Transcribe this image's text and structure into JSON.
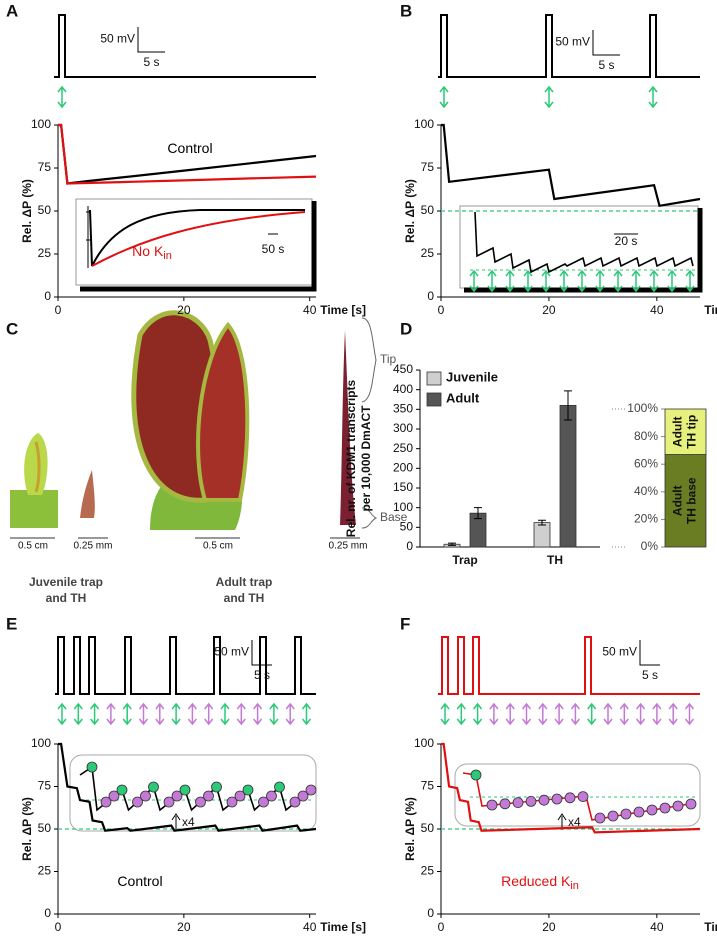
{
  "panel_labels": [
    "A",
    "B",
    "C",
    "D",
    "E",
    "F"
  ],
  "photos": {
    "scale_bars": [
      "0.5 cm",
      "0.25 mm",
      "0.5 cm",
      "0.25 mm"
    ],
    "tip": "Tip",
    "base": "Base",
    "captions": [
      [
        "Juvenile trap",
        "and TH"
      ],
      [
        "Adult trap",
        "and TH"
      ]
    ]
  },
  "chart_data": [
    {
      "type": "line",
      "ylabel": "Rel. ΔP (%)",
      "xlabel": "Time [s]",
      "xlim": [
        0,
        41
      ],
      "ylim": [
        0,
        100
      ],
      "xticks": [
        0,
        20,
        40
      ],
      "yticks": [
        0,
        25,
        50,
        75,
        100
      ],
      "scale_y": "50 mV",
      "scale_x": "5 s",
      "inset_scale": "50 s",
      "series": [
        {
          "name": "Control",
          "color": "#000000",
          "x": [
            0,
            0.5,
            1.5,
            5,
            10,
            20,
            30,
            41
          ],
          "values": [
            100,
            100,
            66,
            67.5,
            69.5,
            73.5,
            77.5,
            82
          ]
        },
        {
          "name": "No K",
          "name_sub": "in",
          "color": "#e01010",
          "x": [
            0,
            0.5,
            1.5,
            10,
            20,
            30,
            41
          ],
          "values": [
            100,
            100,
            66,
            66.8,
            67.8,
            68.9,
            70
          ]
        }
      ]
    },
    {
      "type": "line",
      "ylabel": "Rel. ΔP (%)",
      "xlabel": "Time [s]",
      "xlim": [
        0,
        48
      ],
      "ylim": [
        0,
        100
      ],
      "xticks": [
        0,
        20,
        40
      ],
      "yticks": [
        0,
        25,
        50,
        75,
        100
      ],
      "reference": 50,
      "scale_y": "50 mV",
      "scale_x": "5 s",
      "inset_scale": "20 s",
      "series": [
        {
          "color": "#000000",
          "x": [
            0,
            0.5,
            1.5,
            20,
            21,
            39.5,
            40.5,
            48
          ],
          "values": [
            100,
            100,
            67,
            74,
            57,
            65,
            53,
            57
          ]
        }
      ]
    },
    {
      "type": "bar",
      "ylabel": [
        "Rel. nr. of KDM1 transcripts",
        "per 10,000 DmACT"
      ],
      "categories": [
        "Trap",
        "TH"
      ],
      "ylim": [
        0,
        450
      ],
      "yticks": [
        0,
        50,
        100,
        150,
        200,
        250,
        300,
        350,
        400,
        450
      ],
      "series": [
        {
          "name": "Juvenile",
          "color": "#cfcfcf",
          "values": [
            7,
            62
          ],
          "errors": [
            3,
            6
          ]
        },
        {
          "name": "Adult",
          "color": "#555555",
          "values": [
            86,
            360
          ],
          "errors": [
            14,
            37
          ]
        }
      ]
    },
    {
      "type": "stacked",
      "ylim": [
        0,
        100
      ],
      "yticks": [
        {
          "value": 0,
          "label": "0%"
        },
        {
          "value": 20,
          "label": "20%"
        },
        {
          "value": 40,
          "label": "40%"
        },
        {
          "value": 60,
          "label": "60%"
        },
        {
          "value": 80,
          "label": "80%"
        },
        {
          "value": 100,
          "label": "100%"
        }
      ],
      "series": [
        {
          "name": [
            "Adult",
            "TH base"
          ],
          "color": "#6b7d22",
          "values": [
            67
          ]
        },
        {
          "name": [
            "Adult",
            "TH tip"
          ],
          "color": "#e6f07c",
          "values": [
            33
          ]
        }
      ]
    },
    {
      "type": "line",
      "ylabel": "Rel. ΔP (%)",
      "xlabel": "Time [s]",
      "xlim": [
        0,
        41
      ],
      "ylim": [
        0,
        100
      ],
      "xticks": [
        0,
        20,
        40
      ],
      "yticks": [
        0,
        25,
        50,
        75,
        100
      ],
      "reference": 50,
      "scale_y": "50 mV",
      "scale_x": "5 s",
      "inset_note": "x4",
      "series": [
        {
          "name": "Control",
          "color": "#000000",
          "x": [
            0,
            0.5,
            1.5,
            3,
            3.5,
            5,
            5.5,
            7,
            7.5,
            11,
            11.5,
            18,
            18.5,
            25,
            25.5,
            32,
            32.5,
            38,
            38.5,
            41
          ],
          "values": [
            100,
            100,
            75,
            74,
            67,
            66,
            55,
            54,
            49,
            50.5,
            49,
            52,
            49,
            52,
            49,
            52,
            49,
            52,
            49,
            50
          ]
        }
      ]
    },
    {
      "type": "line",
      "ylabel": "Rel. ΔP (%)",
      "xlabel": "Time [s]",
      "xlim": [
        0,
        48
      ],
      "ylim": [
        0,
        100
      ],
      "xticks": [
        0,
        20,
        40
      ],
      "yticks": [
        0,
        25,
        50,
        75,
        100
      ],
      "reference": 50,
      "scale_y": "50 mV",
      "scale_x": "5 s",
      "inset_note": "x4",
      "series": [
        {
          "name": "Reduced K",
          "name_sub": "in",
          "color": "#e01010",
          "x": [
            0,
            0.5,
            1.5,
            3,
            3.5,
            5,
            5.5,
            7,
            7.5,
            28,
            28.5,
            48
          ],
          "values": [
            100,
            100,
            75,
            74,
            67,
            66,
            55,
            54,
            49,
            51,
            48,
            50
          ]
        }
      ]
    }
  ]
}
